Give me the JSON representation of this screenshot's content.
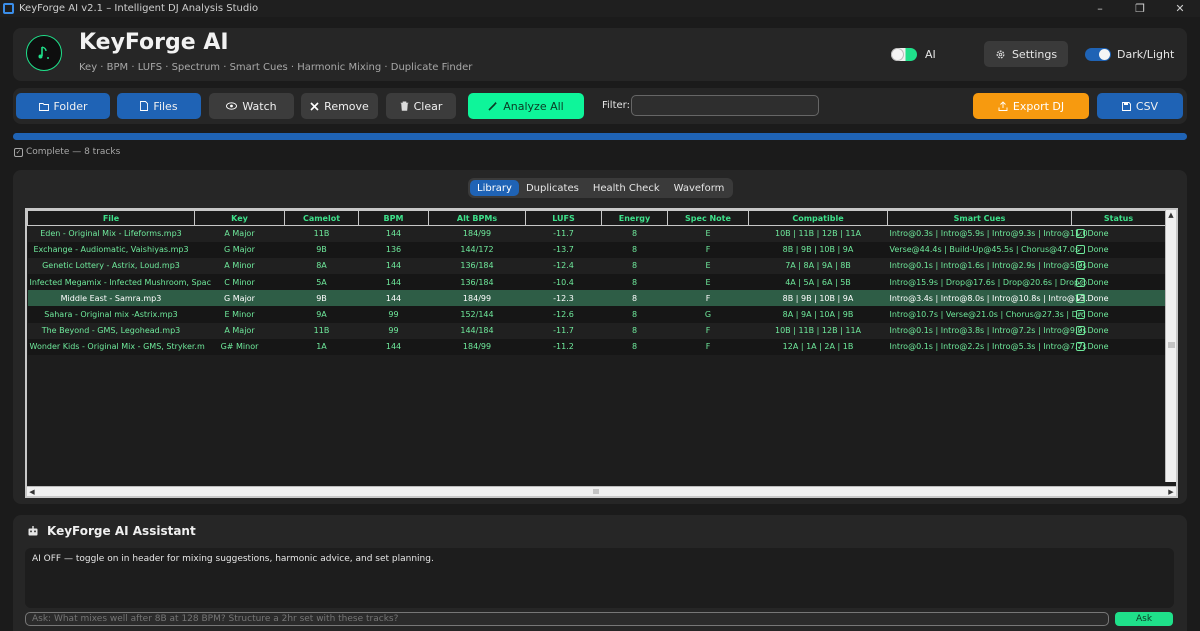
{
  "window": {
    "title": "KeyForge AI v2.1  –  Intelligent DJ Analysis Studio",
    "minimize": "–",
    "maximize": "❐",
    "close": "✕"
  },
  "header": {
    "app_name": "KeyForge AI",
    "tagline": "Key · BPM · LUFS · Spectrum · Smart Cues · Harmonic Mixing · Duplicate Finder",
    "ai_toggle": {
      "label": "AI",
      "on": false
    },
    "settings_label": "Settings",
    "theme_toggle": {
      "label": "Dark/Light",
      "on": true
    }
  },
  "toolbar": {
    "folder_label": "Folder",
    "files_label": "Files",
    "watch_label": "Watch",
    "remove_label": "Remove",
    "clear_label": "Clear",
    "analyze_label": "Analyze All",
    "filter_label": "Filter:",
    "filter_value": "",
    "export_label": "Export DJ",
    "csv_label": "CSV"
  },
  "progress": {
    "percent": 100,
    "status": "Complete  —  8 tracks"
  },
  "tabs": [
    {
      "label": "Library",
      "active": true
    },
    {
      "label": "Duplicates",
      "active": false
    },
    {
      "label": "Health Check",
      "active": false
    },
    {
      "label": "Waveform",
      "active": false
    }
  ],
  "table": {
    "columns": [
      "File",
      "Key",
      "Camelot",
      "BPM",
      "Alt BPMs",
      "LUFS",
      "Energy",
      "Spec Note",
      "Compatible",
      "Smart Cues",
      "Status"
    ],
    "rows": [
      {
        "file": "Eden - Original Mix - Lifeforms.mp3",
        "key": "A Major",
        "camelot": "11B",
        "bpm": "144",
        "alt_bpms": "184/99",
        "lufs": "-11.7",
        "energy": "8",
        "spec_note": "E",
        "compatible": "10B | 11B | 12B | 11A",
        "smart_cues": "Intro@0.3s | Intro@5.9s | Intro@9.3s | Intro@11.0",
        "status": "Done",
        "selected": false
      },
      {
        "file": "Exchange - Audiomatic, Vaishiyas.mp3",
        "key": "G Major",
        "camelot": "9B",
        "bpm": "136",
        "alt_bpms": "144/172",
        "lufs": "-13.7",
        "energy": "8",
        "spec_note": "F",
        "compatible": "8B | 9B | 10B | 9A",
        "smart_cues": "Verse@44.4s | Build-Up@45.5s | Chorus@47.0s",
        "status": "Done",
        "selected": false
      },
      {
        "file": "Genetic Lottery - Astrix, Loud.mp3",
        "key": "A Minor",
        "camelot": "8A",
        "bpm": "144",
        "alt_bpms": "136/184",
        "lufs": "-12.4",
        "energy": "8",
        "spec_note": "E",
        "compatible": "7A | 8A | 9A | 8B",
        "smart_cues": "Intro@0.1s | Intro@1.6s | Intro@2.9s | Intro@5.9s",
        "status": "Done",
        "selected": false
      },
      {
        "file": "Infected Megamix - Infected Mushroom, Spac",
        "key": "C Minor",
        "camelot": "5A",
        "bpm": "144",
        "alt_bpms": "136/184",
        "lufs": "-10.4",
        "energy": "8",
        "spec_note": "E",
        "compatible": "4A | 5A | 6A | 5B",
        "smart_cues": "Intro@15.9s | Drop@17.6s | Drop@20.6s | Drop@",
        "status": "Done",
        "selected": false
      },
      {
        "file": "Middle East - Samra.mp3",
        "key": "G Major",
        "camelot": "9B",
        "bpm": "144",
        "alt_bpms": "184/99",
        "lufs": "-12.3",
        "energy": "8",
        "spec_note": "F",
        "compatible": "8B | 9B | 10B | 9A",
        "smart_cues": "Intro@3.4s | Intro@8.0s | Intro@10.8s | Intro@13.",
        "status": "Done",
        "selected": true
      },
      {
        "file": "Sahara - Original mix -Astrix.mp3",
        "key": "E Minor",
        "camelot": "9A",
        "bpm": "99",
        "alt_bpms": "152/144",
        "lufs": "-12.6",
        "energy": "8",
        "spec_note": "G",
        "compatible": "8A | 9A | 10A | 9B",
        "smart_cues": "Intro@10.7s | Verse@21.0s | Chorus@27.3s | Drc",
        "status": "Done",
        "selected": false
      },
      {
        "file": "The Beyond - GMS, Legohead.mp3",
        "key": "A Major",
        "camelot": "11B",
        "bpm": "99",
        "alt_bpms": "144/184",
        "lufs": "-11.7",
        "energy": "8",
        "spec_note": "F",
        "compatible": "10B | 11B | 12B | 11A",
        "smart_cues": "Intro@0.1s | Intro@3.8s | Intro@7.2s | Intro@9.9s",
        "status": "Done",
        "selected": false
      },
      {
        "file": "Wonder Kids - Original Mix - GMS, Stryker.m",
        "key": "G# Minor",
        "camelot": "1A",
        "bpm": "144",
        "alt_bpms": "184/99",
        "lufs": "-11.2",
        "energy": "8",
        "spec_note": "F",
        "compatible": "12A | 1A | 2A | 1B",
        "smart_cues": "Intro@0.1s | Intro@2.2s | Intro@5.3s | Intro@7.7s",
        "status": "Done",
        "selected": false
      }
    ]
  },
  "assistant": {
    "title": "KeyForge AI Assistant",
    "output": "AI OFF — toggle on in header for mixing suggestions, harmonic advice, and set planning.",
    "input_placeholder": "Ask: What mixes well after 8B at 128 BPM? Structure a 2hr set with these tracks?",
    "ask_label": "Ask"
  },
  "colors": {
    "accent_blue": "#1f63b5",
    "accent_green": "#0ef59a",
    "export_orange": "#f79a0f",
    "table_text": "#6fea9c",
    "selected_row": "#2e5d46"
  }
}
